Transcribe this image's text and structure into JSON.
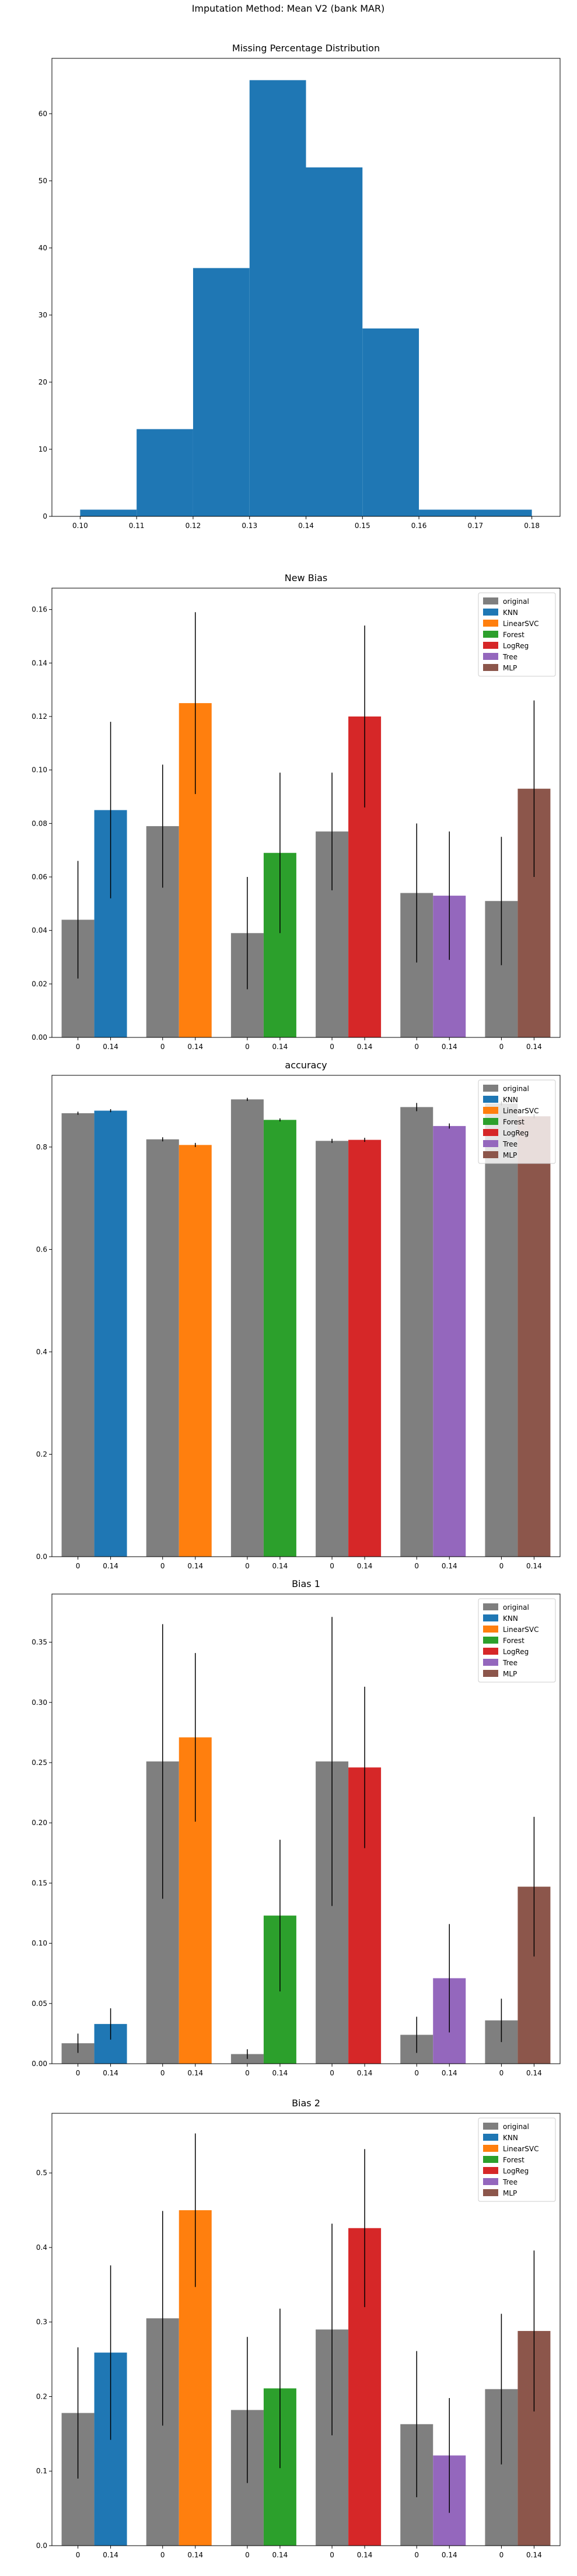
{
  "figure": {
    "title": "Imputation Method: Mean V2 (bank MAR)"
  },
  "colors": {
    "original": "#7f7f7f",
    "KNN": "#1f77b4",
    "LinearSVC": "#ff7f0e",
    "Forest": "#2ca02c",
    "LogReg": "#d62728",
    "Tree": "#9467bd",
    "MLP": "#8c564b",
    "error_bar": "#000000"
  },
  "chart_data": [
    {
      "type": "bar",
      "title": "Missing Percentage Distribution",
      "bins": [
        {
          "x0": 0.1,
          "x1": 0.11,
          "count": 1
        },
        {
          "x0": 0.11,
          "x1": 0.12,
          "count": 13
        },
        {
          "x0": 0.12,
          "x1": 0.13,
          "count": 37
        },
        {
          "x0": 0.13,
          "x1": 0.14,
          "count": 65
        },
        {
          "x0": 0.14,
          "x1": 0.15,
          "count": 52
        },
        {
          "x0": 0.15,
          "x1": 0.16,
          "count": 28
        },
        {
          "x0": 0.16,
          "x1": 0.18,
          "count": 1
        }
      ],
      "xlim": [
        0.095,
        0.185
      ],
      "ylim": [
        0,
        68.25
      ],
      "xticks": [
        "0.10",
        "0.11",
        "0.12",
        "0.13",
        "0.14",
        "0.15",
        "0.16",
        "0.17",
        "0.18"
      ],
      "yticks": [
        "0",
        "10",
        "20",
        "30",
        "40",
        "50",
        "60"
      ],
      "bar_color": "#1f77b4"
    },
    {
      "type": "bar",
      "title": "New Bias",
      "legend_position": "top-right",
      "ylim": [
        0,
        0.168
      ],
      "yticks": [
        "0.00",
        "0.02",
        "0.04",
        "0.06",
        "0.08",
        "0.10",
        "0.12",
        "0.14",
        "0.16"
      ],
      "x_tick_labels": [
        "0",
        "0.14"
      ],
      "groups": [
        {
          "model": "KNN",
          "original": {
            "value": 0.044,
            "err": 0.022
          },
          "imputed": {
            "value": 0.085,
            "err": 0.033
          }
        },
        {
          "model": "LinearSVC",
          "original": {
            "value": 0.079,
            "err": 0.023
          },
          "imputed": {
            "value": 0.125,
            "err": 0.034
          }
        },
        {
          "model": "Forest",
          "original": {
            "value": 0.039,
            "err": 0.021
          },
          "imputed": {
            "value": 0.069,
            "err": 0.03
          }
        },
        {
          "model": "LogReg",
          "original": {
            "value": 0.077,
            "err": 0.022
          },
          "imputed": {
            "value": 0.12,
            "err": 0.034
          }
        },
        {
          "model": "Tree",
          "original": {
            "value": 0.054,
            "err": 0.026
          },
          "imputed": {
            "value": 0.053,
            "err": 0.024
          }
        },
        {
          "model": "MLP",
          "original": {
            "value": 0.051,
            "err": 0.024
          },
          "imputed": {
            "value": 0.093,
            "err": 0.033
          }
        }
      ]
    },
    {
      "type": "bar",
      "title": "accuracy",
      "legend_position": "top-right",
      "ylim": [
        0,
        0.94
      ],
      "yticks": [
        "0.0",
        "0.2",
        "0.4",
        "0.6",
        "0.8"
      ],
      "x_tick_labels": [
        "0",
        "0.14"
      ],
      "groups": [
        {
          "model": "KNN",
          "original": {
            "value": 0.866,
            "err": 0.003
          },
          "imputed": {
            "value": 0.871,
            "err": 0.003
          }
        },
        {
          "model": "LinearSVC",
          "original": {
            "value": 0.815,
            "err": 0.004
          },
          "imputed": {
            "value": 0.804,
            "err": 0.004
          }
        },
        {
          "model": "Forest",
          "original": {
            "value": 0.893,
            "err": 0.003
          },
          "imputed": {
            "value": 0.853,
            "err": 0.003
          }
        },
        {
          "model": "LogReg",
          "original": {
            "value": 0.812,
            "err": 0.004
          },
          "imputed": {
            "value": 0.814,
            "err": 0.004
          }
        },
        {
          "model": "Tree",
          "original": {
            "value": 0.878,
            "err": 0.008
          },
          "imputed": {
            "value": 0.841,
            "err": 0.005
          }
        },
        {
          "model": "MLP",
          "original": {
            "value": 0.885,
            "err": 0.004
          },
          "imputed": {
            "value": 0.86,
            "err": 0.004
          }
        }
      ]
    },
    {
      "type": "bar",
      "title": "Bias 1",
      "legend_position": "top-right",
      "ylim": [
        0,
        0.39
      ],
      "yticks": [
        "0.00",
        "0.05",
        "0.10",
        "0.15",
        "0.20",
        "0.25",
        "0.30",
        "0.35"
      ],
      "x_tick_labels": [
        "0",
        "0.14"
      ],
      "groups": [
        {
          "model": "KNN",
          "original": {
            "value": 0.017,
            "err": 0.008
          },
          "imputed": {
            "value": 0.033,
            "err": 0.013
          }
        },
        {
          "model": "LinearSVC",
          "original": {
            "value": 0.251,
            "err": 0.114
          },
          "imputed": {
            "value": 0.271,
            "err": 0.07
          }
        },
        {
          "model": "Forest",
          "original": {
            "value": 0.008,
            "err": 0.004
          },
          "imputed": {
            "value": 0.123,
            "err": 0.063
          }
        },
        {
          "model": "LogReg",
          "original": {
            "value": 0.251,
            "err": 0.12
          },
          "imputed": {
            "value": 0.246,
            "err": 0.067
          }
        },
        {
          "model": "Tree",
          "original": {
            "value": 0.024,
            "err": 0.015
          },
          "imputed": {
            "value": 0.071,
            "err": 0.045
          }
        },
        {
          "model": "MLP",
          "original": {
            "value": 0.036,
            "err": 0.018
          },
          "imputed": {
            "value": 0.147,
            "err": 0.058
          }
        }
      ]
    },
    {
      "type": "bar",
      "title": "Bias 2",
      "legend_position": "top-right",
      "ylim": [
        0,
        0.58
      ],
      "yticks": [
        "0.0",
        "0.1",
        "0.2",
        "0.3",
        "0.4",
        "0.5"
      ],
      "x_tick_labels": [
        "0",
        "0.14"
      ],
      "groups": [
        {
          "model": "KNN",
          "original": {
            "value": 0.178,
            "err": 0.088
          },
          "imputed": {
            "value": 0.259,
            "err": 0.117
          }
        },
        {
          "model": "LinearSVC",
          "original": {
            "value": 0.305,
            "err": 0.144
          },
          "imputed": {
            "value": 0.45,
            "err": 0.103
          }
        },
        {
          "model": "Forest",
          "original": {
            "value": 0.182,
            "err": 0.098
          },
          "imputed": {
            "value": 0.211,
            "err": 0.107
          }
        },
        {
          "model": "LogReg",
          "original": {
            "value": 0.29,
            "err": 0.142
          },
          "imputed": {
            "value": 0.426,
            "err": 0.106
          }
        },
        {
          "model": "Tree",
          "original": {
            "value": 0.163,
            "err": 0.098
          },
          "imputed": {
            "value": 0.121,
            "err": 0.077
          }
        },
        {
          "model": "MLP",
          "original": {
            "value": 0.21,
            "err": 0.101
          },
          "imputed": {
            "value": 0.288,
            "err": 0.108
          }
        }
      ]
    }
  ],
  "legend": {
    "entries": [
      "original",
      "KNN",
      "LinearSVC",
      "Forest",
      "LogReg",
      "Tree",
      "MLP"
    ]
  }
}
